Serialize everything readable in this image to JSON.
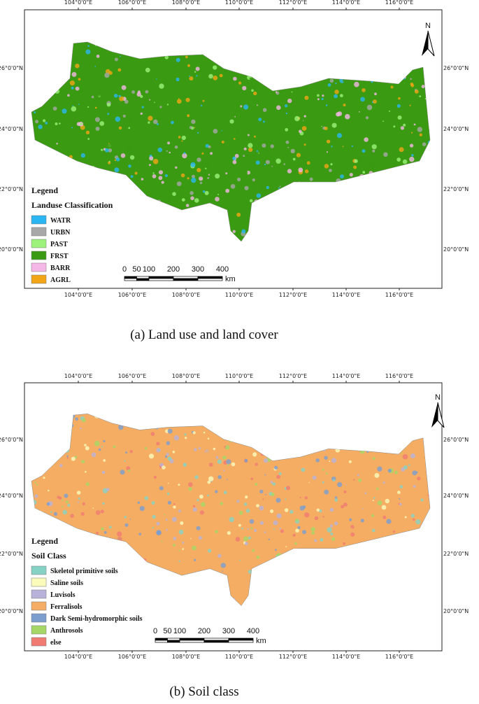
{
  "panels": [
    {
      "caption": "(a) Land use and land cover",
      "north": "N",
      "top_labels": [
        "104°0'0\"E",
        "106°0'0\"E",
        "108°0'0\"E",
        "110°0'0\"E",
        "112°0'0\"E",
        "114°0'0\"E",
        "116°0'0\"E"
      ],
      "bottom_labels": [
        "104°0'0\"E",
        "106°0'0\"E",
        "108°0'0\"E",
        "110°0'0\"E",
        "112°0'0\"E",
        "114°0'0\"E",
        "116°0'0\"E"
      ],
      "left_labels": [
        "26°0'0\"N",
        "24°0'0\"N",
        "22°0'0\"N",
        "20°0'0\"N"
      ],
      "right_labels": [
        "26°0'0\"N",
        "24°0'0\"N",
        "22°0'0\"N",
        "20°0'0\"N"
      ],
      "base_color": "#3a9a12",
      "legend": {
        "title": "Legend",
        "subtitle": "Landuse Classification",
        "items": [
          {
            "label": "WATR",
            "color": "#29b6f2"
          },
          {
            "label": "URBN",
            "color": "#a8a8a8"
          },
          {
            "label": "PAST",
            "color": "#9cf27a"
          },
          {
            "label": "FRST",
            "color": "#3a9a12"
          },
          {
            "label": "BARR",
            "color": "#f5b7e6"
          },
          {
            "label": "AGRL",
            "color": "#f2a516"
          }
        ]
      },
      "scale": {
        "labels": [
          "0",
          "50",
          "100",
          "200",
          "300",
          "400"
        ],
        "unit": "km"
      }
    },
    {
      "caption": "(b) Soil class",
      "north": "N",
      "top_labels": [
        "104°0'0\"E",
        "106°0'0\"E",
        "108°0'0\"E",
        "110°0'0\"E",
        "112°0'0\"E",
        "114°0'0\"E",
        "116°0'0\"E"
      ],
      "bottom_labels": [
        "104°0'0\"E",
        "106°0'0\"E",
        "108°0'0\"E",
        "110°0'0\"E",
        "112°0'0\"E",
        "114°0'0\"E",
        "116°0'0\"E"
      ],
      "left_labels": [
        "26°0'0\"N",
        "24°0'0\"N",
        "22°0'0\"N",
        "20°0'0\"N"
      ],
      "right_labels": [
        "26°0'0\"N",
        "24°0'0\"N",
        "22°0'0\"N",
        "20°0'0\"N"
      ],
      "base_color": "#f4ad63",
      "legend": {
        "title": "Legend",
        "subtitle": "Soil Class",
        "items": [
          {
            "label": "Skeletol primitive soils",
            "color": "#86d3c6"
          },
          {
            "label": "Saline soils",
            "color": "#fbfbbb"
          },
          {
            "label": "Luvisols",
            "color": "#b8b2da"
          },
          {
            "label": "Ferralisols",
            "color": "#f4ad63"
          },
          {
            "label": "Dark Semi-hydromorphic soils",
            "color": "#7b9ecf"
          },
          {
            "label": "Anthrosols",
            "color": "#a6d766"
          },
          {
            "label": "else",
            "color": "#f07b73"
          }
        ]
      },
      "scale": {
        "labels": [
          "0",
          "50",
          "100",
          "200",
          "300",
          "400"
        ],
        "unit": "km"
      }
    }
  ]
}
